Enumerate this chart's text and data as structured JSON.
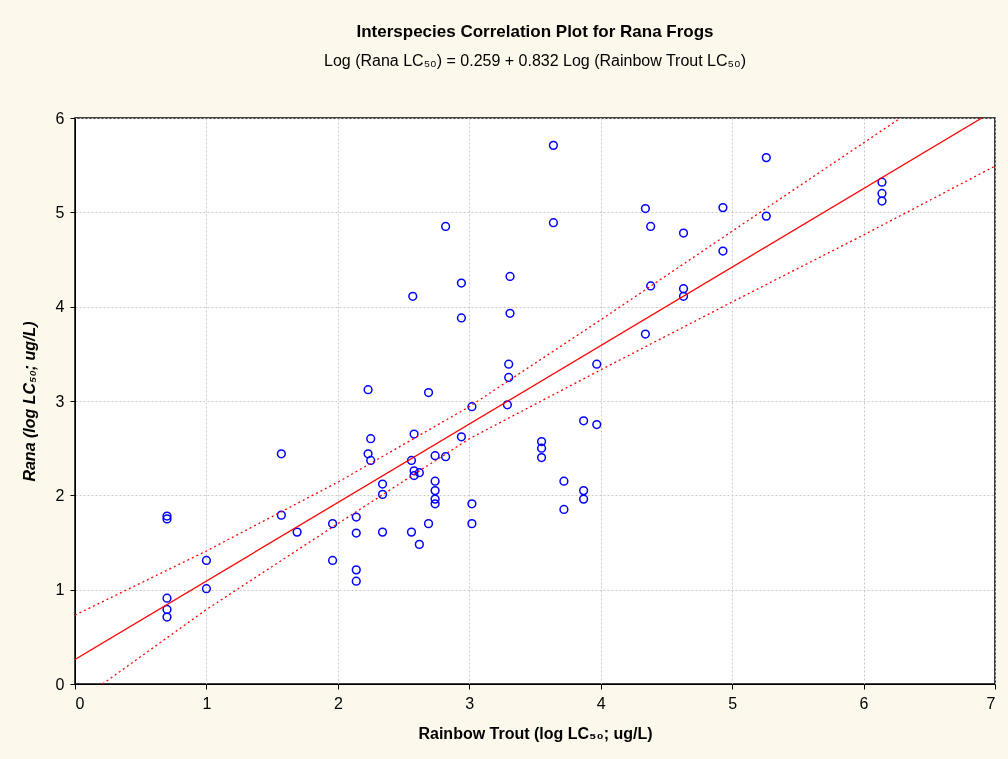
{
  "chart_data": {
    "type": "scatter",
    "title": "Interspecies Correlation Plot for Rana Frogs",
    "subtitle": "Log (Rana LC₅₀) = 0.259 + 0.832 Log (Rainbow Trout LC₅₀)",
    "xlabel": "Rainbow Trout (log LC₅₀; ug/L)",
    "ylabel": "Rana (log LC₅₀; ug/L)",
    "xlim": [
      0,
      7
    ],
    "ylim": [
      0,
      6
    ],
    "xticks": [
      0,
      1,
      2,
      3,
      4,
      5,
      6,
      7
    ],
    "yticks": [
      0,
      1,
      2,
      3,
      4,
      5,
      6
    ],
    "grid": true,
    "series": [
      {
        "marker": "circle",
        "color": "#0000ff",
        "x": [
          0.7,
          0.7,
          0.7,
          0.7,
          0.7,
          1.0,
          1.0,
          1.57,
          1.57,
          1.69,
          1.96,
          1.96,
          2.14,
          2.14,
          2.14,
          2.14,
          2.23,
          2.25,
          2.25,
          2.34,
          2.34,
          2.34,
          2.56,
          2.58,
          2.58,
          2.58,
          2.62,
          2.56,
          2.62,
          2.69,
          2.74,
          2.74,
          2.74,
          2.74,
          2.74,
          2.82,
          2.94,
          3.02,
          3.02,
          3.02,
          3.29,
          3.55,
          3.55,
          3.55,
          3.72,
          3.72,
          3.87,
          3.87,
          3.87,
          3.97,
          2.82,
          2.57,
          2.94,
          2.94,
          3.31,
          3.31,
          3.3,
          3.3,
          2.23,
          2.69,
          3.64,
          3.64,
          4.34,
          4.38,
          4.63,
          4.93,
          5.26,
          5.26,
          4.93,
          4.38,
          4.63,
          4.63,
          4.34,
          3.97,
          6.14,
          6.14,
          6.14
        ],
        "values": [
          1.78,
          1.75,
          0.91,
          0.79,
          0.71,
          1.31,
          1.01,
          2.44,
          1.79,
          1.61,
          1.7,
          1.31,
          1.77,
          1.6,
          1.21,
          1.09,
          2.44,
          2.6,
          2.37,
          2.12,
          2.01,
          1.61,
          2.37,
          2.65,
          2.26,
          2.21,
          2.24,
          1.61,
          1.48,
          1.7,
          2.42,
          2.15,
          2.05,
          1.96,
          1.91,
          2.41,
          2.62,
          2.94,
          1.91,
          1.7,
          2.96,
          2.57,
          2.5,
          2.4,
          2.15,
          1.85,
          2.79,
          2.05,
          1.96,
          2.75,
          4.85,
          4.11,
          4.25,
          3.88,
          4.32,
          3.93,
          3.39,
          3.25,
          3.12,
          3.09,
          5.71,
          4.89,
          5.04,
          4.85,
          4.78,
          5.05,
          5.58,
          4.96,
          4.59,
          4.22,
          4.19,
          4.11,
          3.71,
          3.39,
          5.32,
          5.2,
          5.12
        ]
      },
      {
        "type": "line",
        "line_style": "solid",
        "color": "#ff0000",
        "x": [
          0,
          6.9
        ],
        "values": [
          0.26,
          6.0
        ]
      },
      {
        "type": "line",
        "line_style": "dotted",
        "color": "#ff0000",
        "x": [
          0,
          1,
          2,
          3,
          4,
          5,
          6.26
        ],
        "values": [
          0.73,
          1.41,
          2.14,
          2.94,
          3.86,
          4.8,
          5.98
        ]
      },
      {
        "type": "line",
        "line_style": "dotted",
        "color": "#ff0000",
        "x": [
          0.21,
          1,
          2,
          3,
          4,
          5,
          6,
          7
        ],
        "values": [
          0,
          0.79,
          1.7,
          2.6,
          3.33,
          4.05,
          4.76,
          5.49
        ]
      }
    ]
  }
}
